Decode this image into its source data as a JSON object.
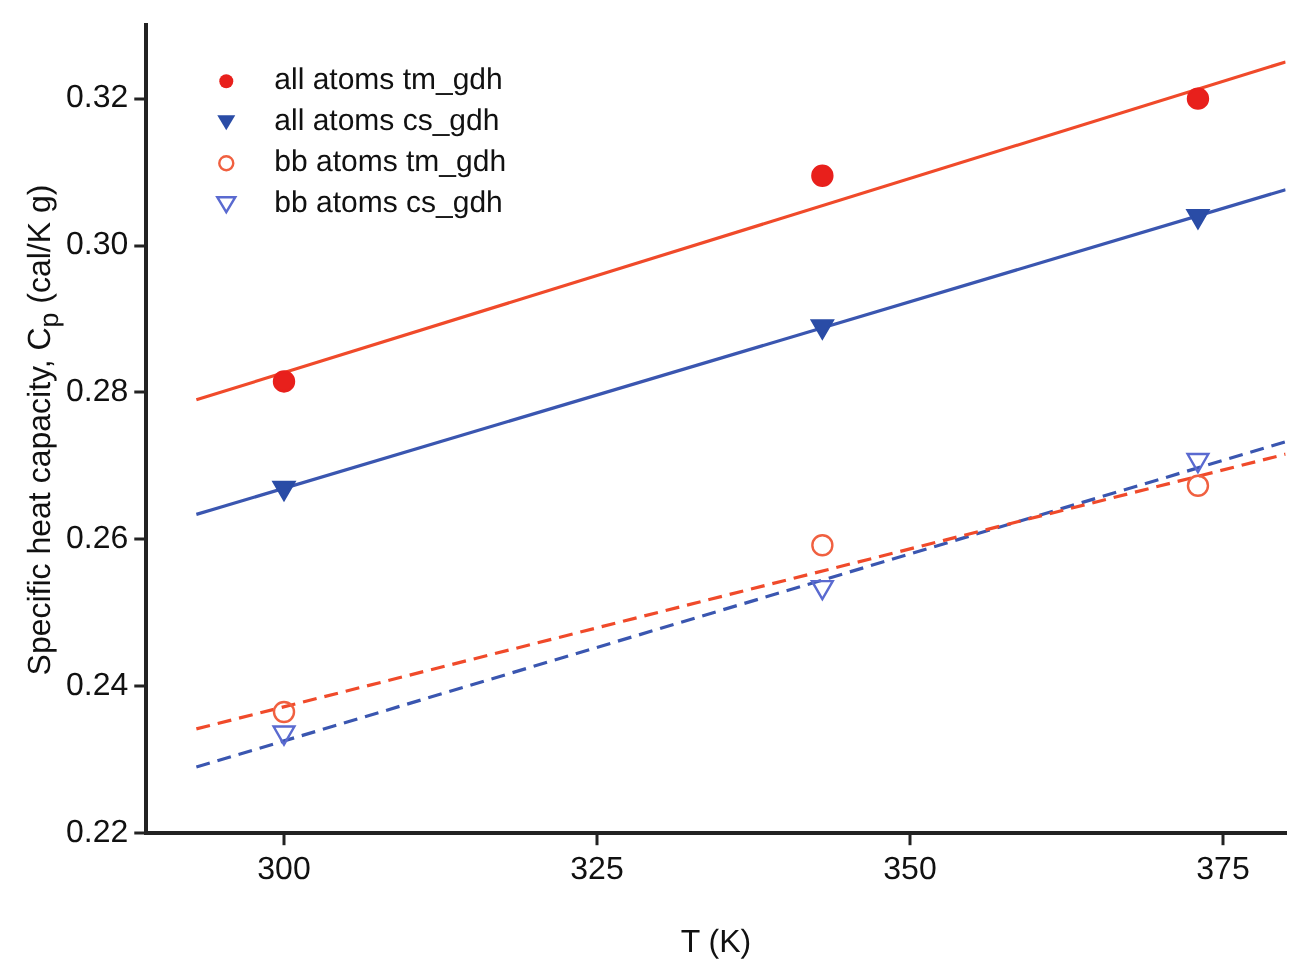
{
  "chart_data": {
    "type": "scatter",
    "xlabel": "T (K)",
    "ylabel": "Specific heat capacity, C$_{p}$ (cal/K g)",
    "xlim": [
      289,
      380
    ],
    "xticks": [
      300,
      325,
      350,
      375
    ],
    "ylim": [
      0.22,
      0.33
    ],
    "yticks": [
      0.22,
      0.24,
      0.26,
      0.28,
      {
        "value": 0.3,
        "label": "0.30"
      },
      0.32
    ],
    "grid": false,
    "legend": "top left",
    "series": [
      {
        "name": "all atoms tm_gdh",
        "type": "scatter",
        "marker": "circle",
        "color": "#e8201c",
        "x": [
          300,
          343,
          373
        ],
        "values": [
          0.2815,
          0.3095,
          0.32
        ]
      },
      {
        "name": "all atoms cs_gdh",
        "type": "scatter",
        "marker": "triangle",
        "color": "#2a4ca6",
        "x": [
          300,
          343,
          373
        ],
        "values": [
          0.267,
          0.289,
          0.304
        ]
      },
      {
        "name": "bb atoms tm_gdh",
        "type": "scatter",
        "marker": "circle",
        "color": "#f06040",
        "x": [
          300,
          343,
          373
        ],
        "values": [
          0.2365,
          0.2592,
          0.2673
        ]
      },
      {
        "name": "bb atoms cs_gdh",
        "type": "scatter",
        "marker": "triangle",
        "color": "#5a6ad0",
        "x": [
          300,
          343,
          373
        ],
        "values": [
          0.2337,
          0.2535,
          0.2708
        ]
      },
      {
        "type": "line",
        "line_style": "solid",
        "color": "#f04a2a",
        "x": [
          293,
          380
        ],
        "values": [
          0.279,
          0.325
        ]
      },
      {
        "type": "line",
        "line_style": "solid",
        "color": "#3a56b0",
        "x": [
          293,
          380
        ],
        "values": [
          0.2634,
          0.3076
        ]
      },
      {
        "type": "line",
        "line_style": "dashed",
        "color": "#f04a2a",
        "x": [
          293,
          380
        ],
        "values": [
          0.2342,
          0.2716
        ]
      },
      {
        "type": "line",
        "line_style": "dashed",
        "color": "#3a56b0",
        "x": [
          293,
          380
        ],
        "values": [
          0.229,
          0.2733
        ]
      }
    ]
  }
}
